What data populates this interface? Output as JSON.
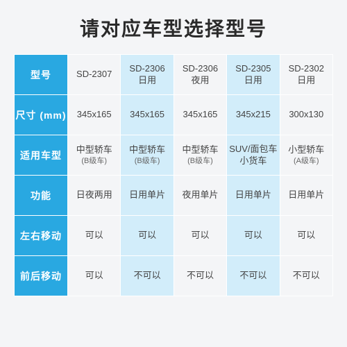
{
  "title": "请对应车型选择型号",
  "colors": {
    "header_bg": "#29a8e1",
    "header_text": "#ffffff",
    "alt_col_bg": "#d2edfa",
    "plain_bg": "#f4f5f7",
    "cell_text": "#444444",
    "title_text": "#2a2a2a",
    "border": "#ffffff"
  },
  "table": {
    "row_headers": [
      "型号",
      "尺寸 (mm)",
      "适用车型",
      "功能",
      "左右移动",
      "前后移动"
    ],
    "columns": [
      {
        "model": "SD-2307",
        "size": "345x165",
        "vehicle": "中型轿车",
        "vehicle_sub": "(B级车)",
        "function": "日夜两用",
        "move_lr": "可以",
        "move_fb": "可以"
      },
      {
        "model": "SD-2306\n日用",
        "size": "345x165",
        "vehicle": "中型轿车",
        "vehicle_sub": "(B级车)",
        "function": "日用单片",
        "move_lr": "可以",
        "move_fb": "不可以"
      },
      {
        "model": "SD-2306\n夜用",
        "size": "345x165",
        "vehicle": "中型轿车",
        "vehicle_sub": "(B级车)",
        "function": "夜用单片",
        "move_lr": "可以",
        "move_fb": "不可以"
      },
      {
        "model": "SD-2305\n日用",
        "size": "345x215",
        "vehicle": "SUV/面包车\n小货车",
        "vehicle_sub": "",
        "function": "日用单片",
        "move_lr": "可以",
        "move_fb": "不可以"
      },
      {
        "model": "SD-2302\n日用",
        "size": "300x130",
        "vehicle": "小型轿车",
        "vehicle_sub": "(A级车)",
        "function": "日用单片",
        "move_lr": "可以",
        "move_fb": "不可以"
      }
    ]
  }
}
